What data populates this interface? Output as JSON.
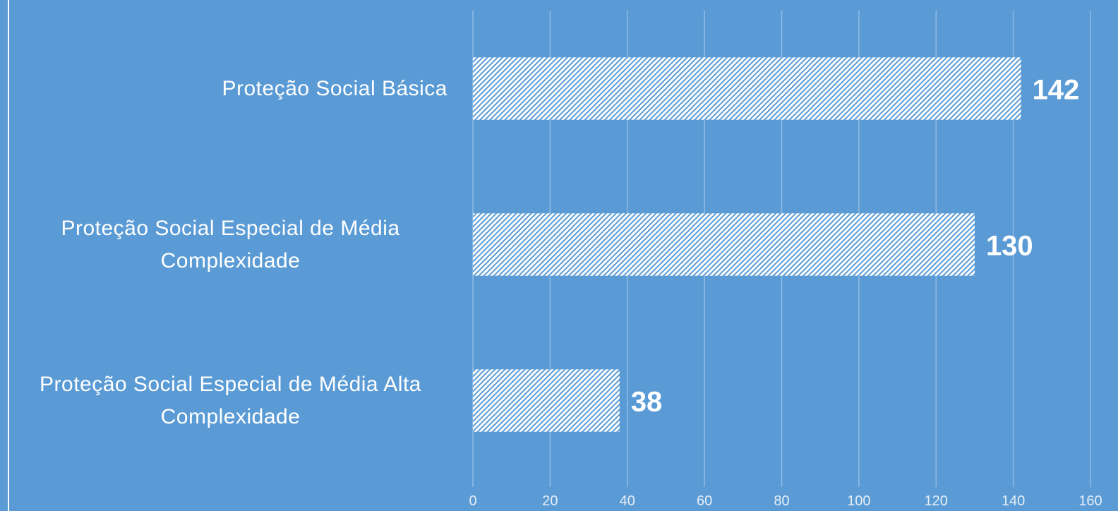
{
  "chart_data": {
    "type": "bar",
    "orientation": "horizontal",
    "categories": [
      "Proteção Social Básica",
      "Proteção Social Especial de Média Complexidade",
      "Proteção Social Especial de Média Alta Complexidade"
    ],
    "values": [
      142,
      130,
      38
    ],
    "color": "#ffffff",
    "xlim": [
      0,
      160
    ],
    "xticks": [
      0,
      20,
      40,
      60,
      80,
      100,
      120,
      140,
      160
    ],
    "grid": true
  }
}
